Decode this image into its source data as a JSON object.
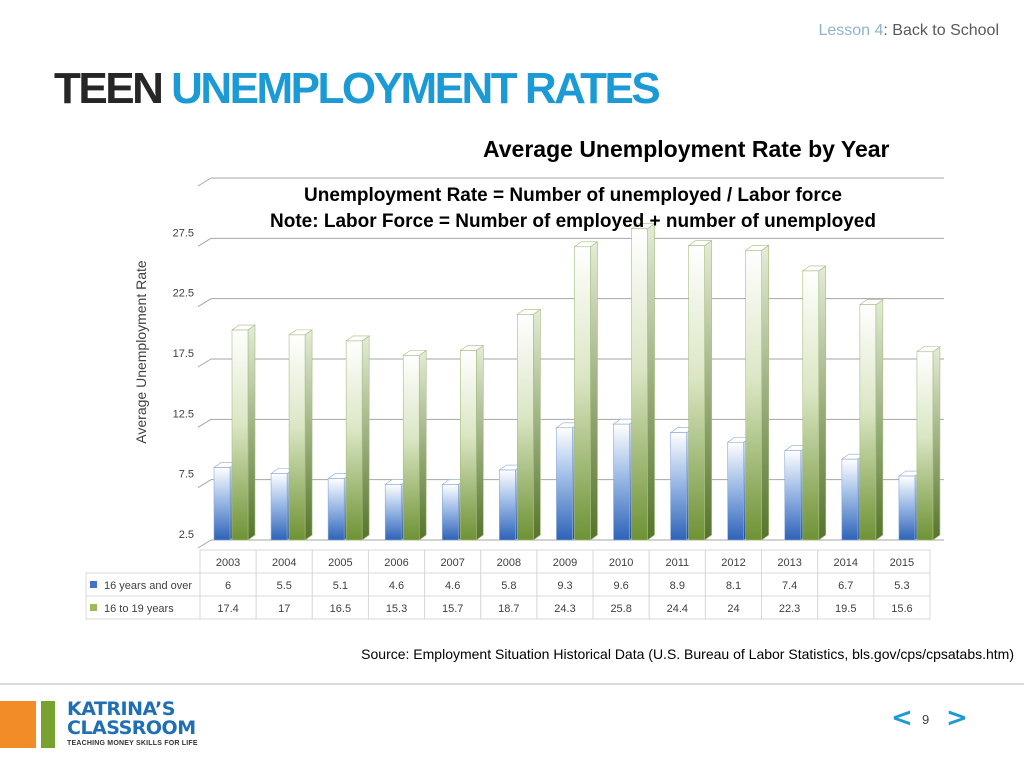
{
  "header": {
    "lesson_label": "Lesson 4",
    "lesson_title": ": Back to School",
    "title_dark": "TEEN",
    "title_blue": "UNEMPLOYMENT RATES"
  },
  "chart_notes": {
    "line1": "Unemployment Rate = Number of unemployed / Labor force",
    "line2": "Note: Labor Force = Number of employed + number of unemployed"
  },
  "chart_data": {
    "type": "bar",
    "title": "Average Unemployment Rate by Year",
    "ylabel": "Average Unemployment Rate",
    "xlabel": "",
    "categories": [
      "2003",
      "2004",
      "2005",
      "2006",
      "2007",
      "2008",
      "2009",
      "2010",
      "2011",
      "2012",
      "2013",
      "2014",
      "2015"
    ],
    "series": [
      {
        "name": "16 years and over",
        "values": [
          6,
          5.5,
          5.1,
          4.6,
          4.6,
          5.8,
          9.3,
          9.6,
          8.9,
          8.1,
          7.4,
          6.7,
          5.3
        ],
        "color": "#4472c4"
      },
      {
        "name": "16 to 19 years",
        "values": [
          17.4,
          17,
          16.5,
          15.3,
          15.7,
          18.7,
          24.3,
          25.8,
          24.4,
          24,
          22.3,
          19.5,
          15.6
        ],
        "color": "#77933c"
      }
    ],
    "yticks": [
      "2.5",
      "7.5",
      "12.5",
      "17.5",
      "22.5",
      "27.5"
    ],
    "ylim": [
      0,
      30
    ],
    "grid": true,
    "legend": "data-table",
    "data_table": true
  },
  "source": "Source: Employment Situation Historical Data (U.S. Bureau of Labor Statistics, bls.gov/cps/cpsatabs.htm)",
  "footer": {
    "logo_line1": "KATRINA’S",
    "logo_line2": "CLASSROOM",
    "logo_tagline": "TEACHING MONEY SKILLS FOR LIFE",
    "prev": "<",
    "next": ">",
    "page_number": "9"
  }
}
